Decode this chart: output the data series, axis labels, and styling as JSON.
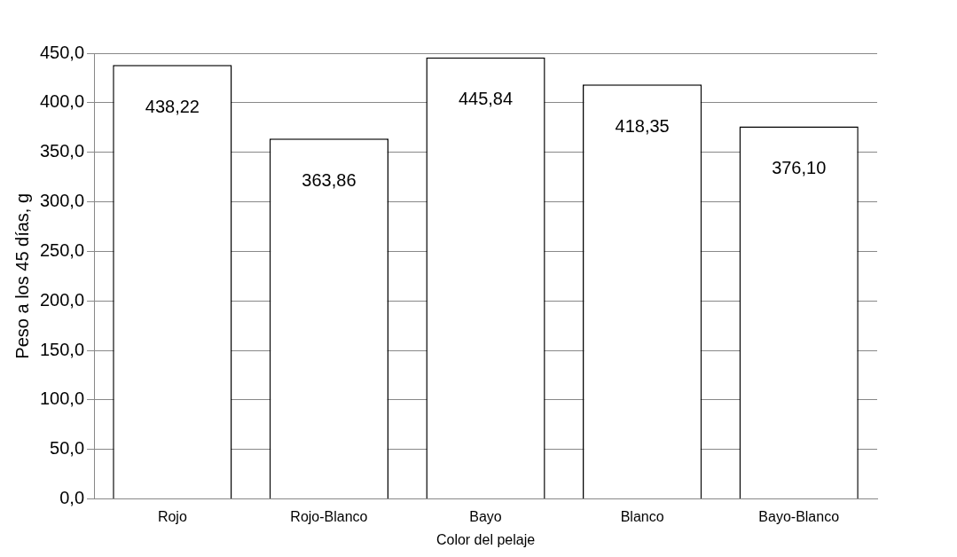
{
  "chart_data": {
    "type": "bar",
    "xlabel": "Color del pelaje",
    "ylabel": "Peso a los 45 días, g",
    "categories": [
      "Rojo",
      "Rojo-Blanco",
      "Bayo",
      "Blanco",
      "Bayo-Blanco"
    ],
    "values": [
      438.22,
      363.86,
      445.84,
      418.35,
      376.1
    ],
    "value_labels": [
      "438,22",
      "363,86",
      "445,84",
      "418,35",
      "376,10"
    ],
    "color": "#ffffff",
    "ylim": [
      0,
      450
    ],
    "yticks": [
      {
        "value": 0,
        "label": "0,0"
      },
      {
        "value": 50,
        "label": "50,0"
      },
      {
        "value": 100,
        "label": "100,0"
      },
      {
        "value": 150,
        "label": "150,0"
      },
      {
        "value": 200,
        "label": "200,0"
      },
      {
        "value": 250,
        "label": "250,0"
      },
      {
        "value": 300,
        "label": "300,0"
      },
      {
        "value": 350,
        "label": "350,0"
      },
      {
        "value": 400,
        "label": "400,0"
      },
      {
        "value": 450,
        "label": "450,0"
      }
    ],
    "grid": "y"
  }
}
